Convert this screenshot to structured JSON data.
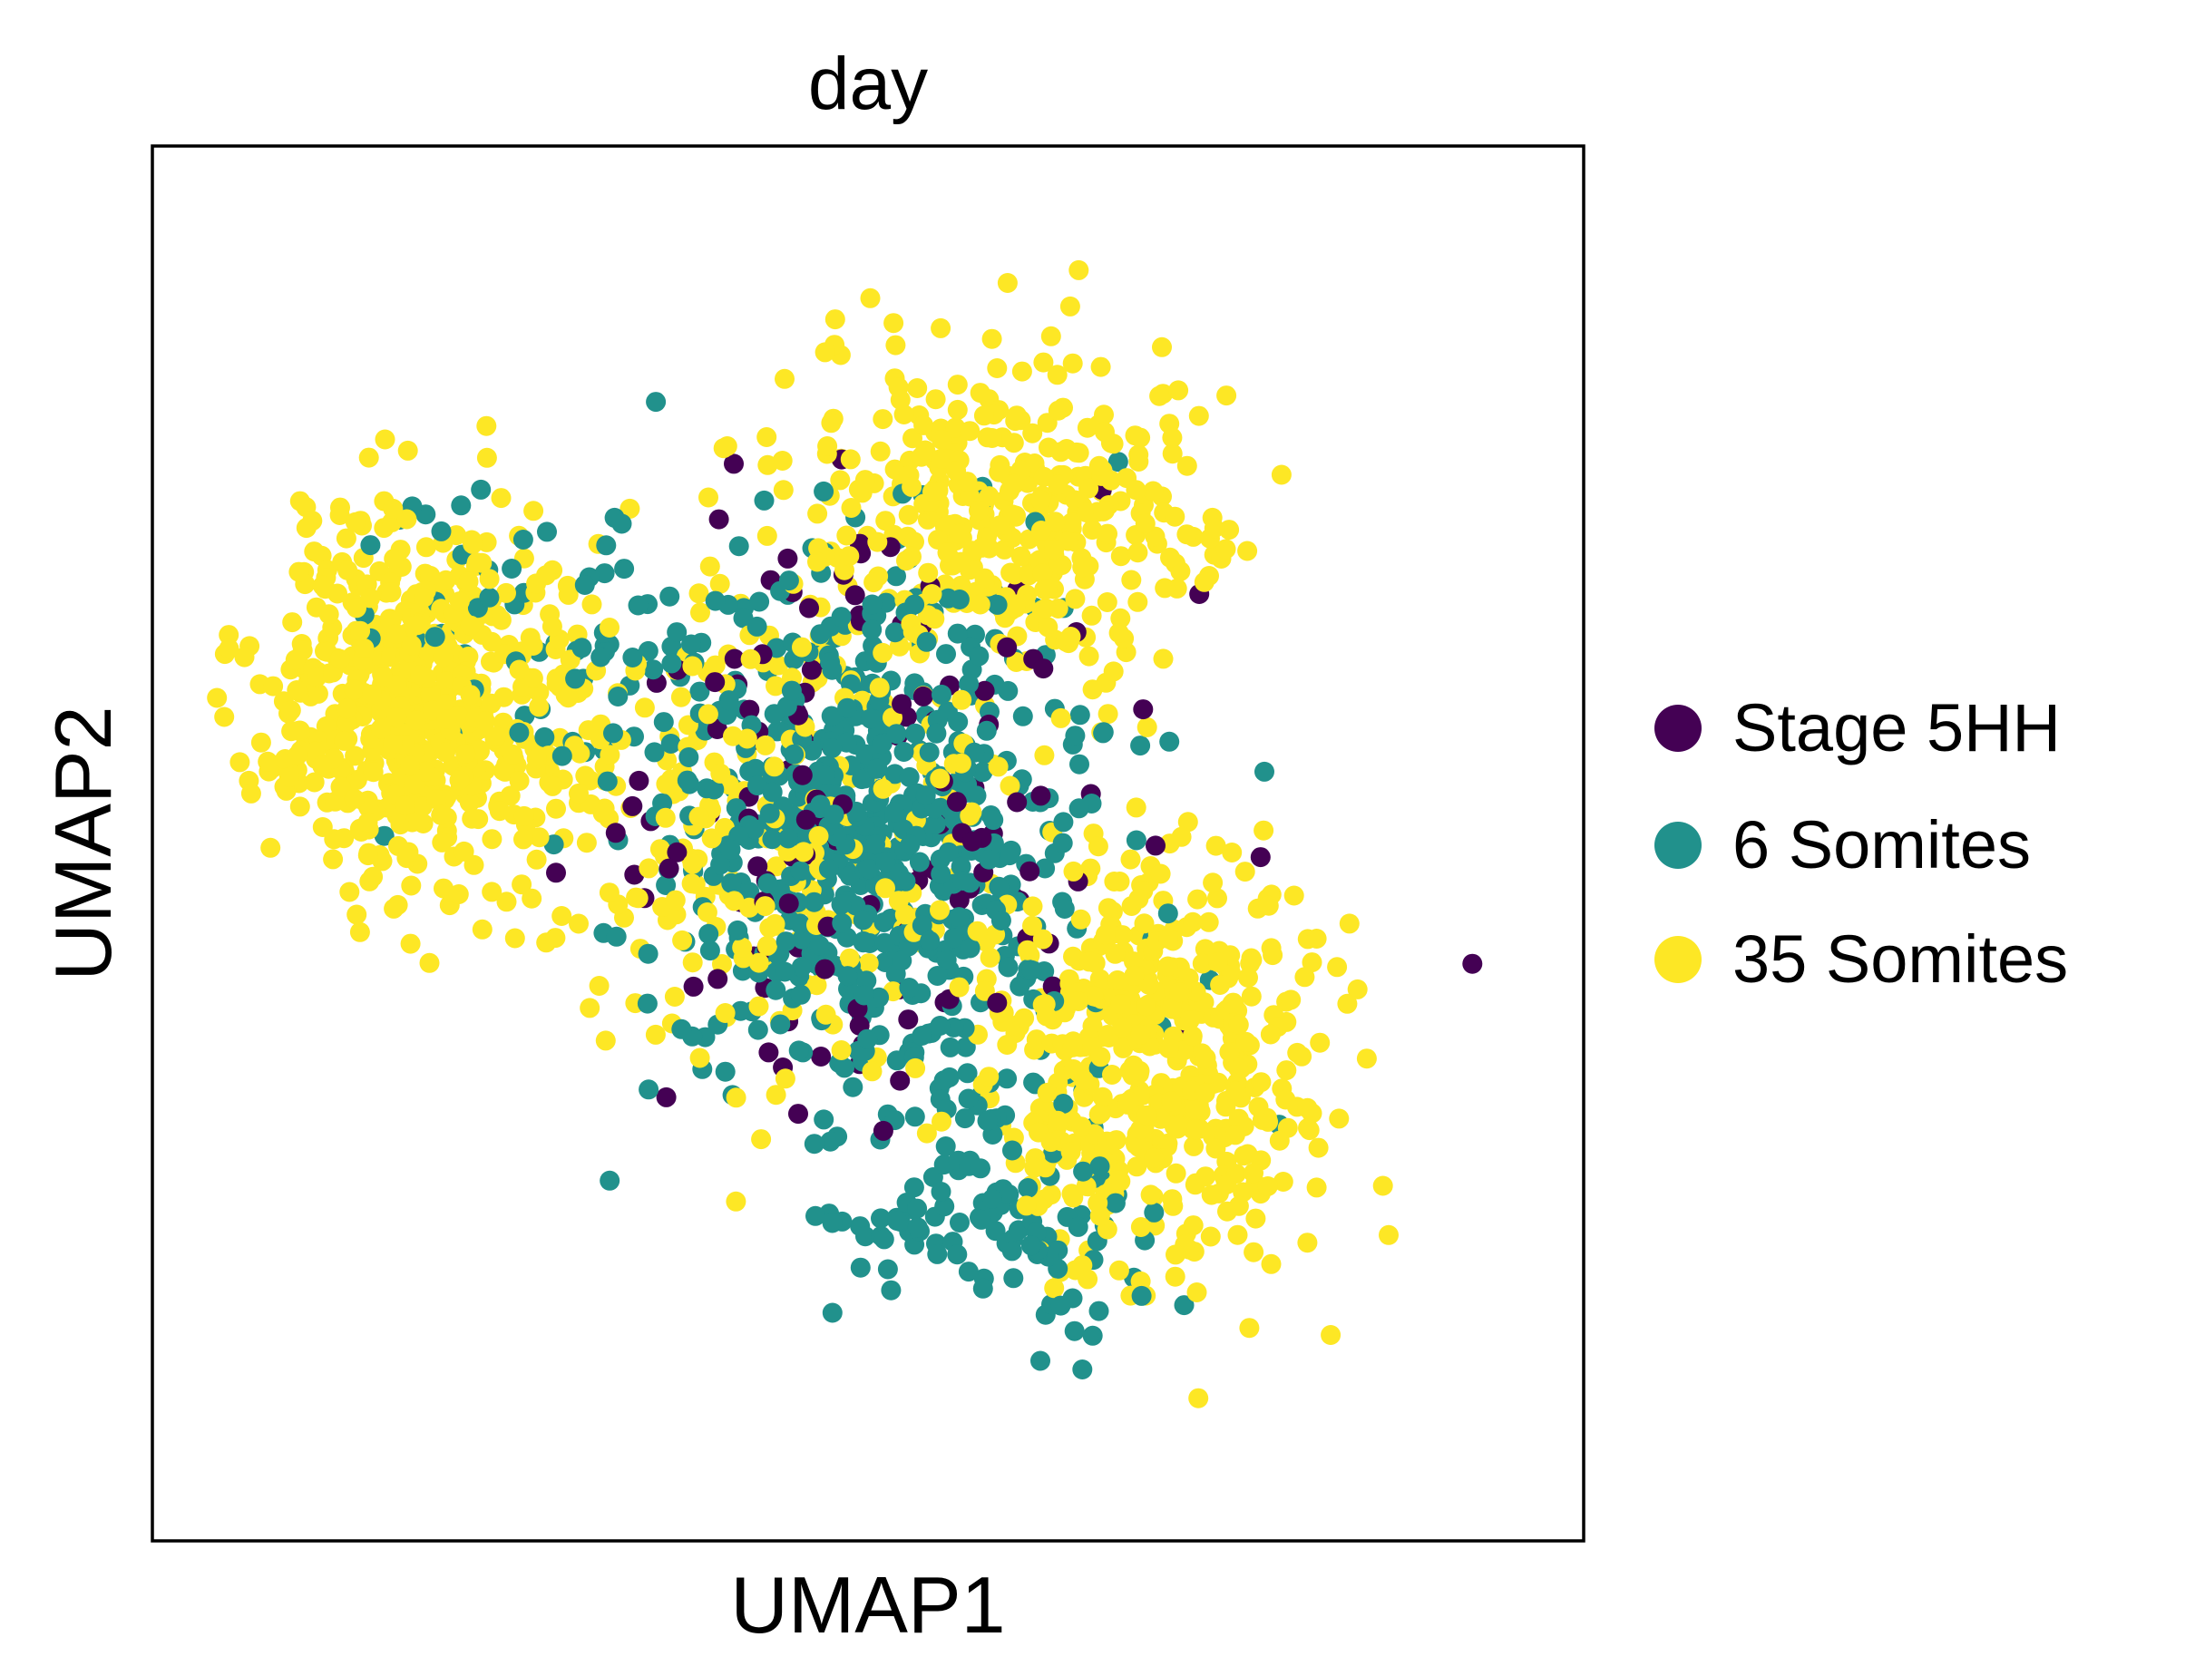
{
  "chart_data": {
    "type": "scatter",
    "title": "day",
    "xlabel": "UMAP1",
    "ylabel": "UMAP2",
    "xticks": [],
    "yticks": [],
    "xlim": [
      -8.0,
      8.0
    ],
    "ylim": [
      -7.5,
      7.5
    ],
    "grid": false,
    "legend_position": "right",
    "series": [
      {
        "name": "Stage 5HH",
        "color": "#440154",
        "clusters": [
          {
            "cx": 0.0,
            "cy": 0.5,
            "sx": 3.0,
            "sy": 3.2,
            "n": 140
          }
        ]
      },
      {
        "name": "6 Somites",
        "color": "#21918c",
        "clusters": [
          {
            "cx": 0.0,
            "cy": 0.0,
            "sx": 2.2,
            "sy": 2.8,
            "n": 650
          },
          {
            "cx": 1.5,
            "cy": -4.0,
            "sx": 1.8,
            "sy": 1.2,
            "n": 110
          },
          {
            "cx": -3.5,
            "cy": 2.0,
            "sx": 2.0,
            "sy": 1.6,
            "n": 70
          }
        ]
      },
      {
        "name": "35 Somites",
        "color": "#fde725",
        "clusters": [
          {
            "cx": -5.0,
            "cy": 1.5,
            "sx": 1.6,
            "sy": 1.8,
            "n": 600
          },
          {
            "cx": 3.2,
            "cy": -2.3,
            "sx": 1.7,
            "sy": 2.0,
            "n": 520
          },
          {
            "cx": 1.5,
            "cy": 3.5,
            "sx": 2.3,
            "sy": 1.6,
            "n": 380
          },
          {
            "cx": -1.0,
            "cy": 0.0,
            "sx": 2.5,
            "sy": 2.5,
            "n": 250
          }
        ]
      }
    ]
  }
}
